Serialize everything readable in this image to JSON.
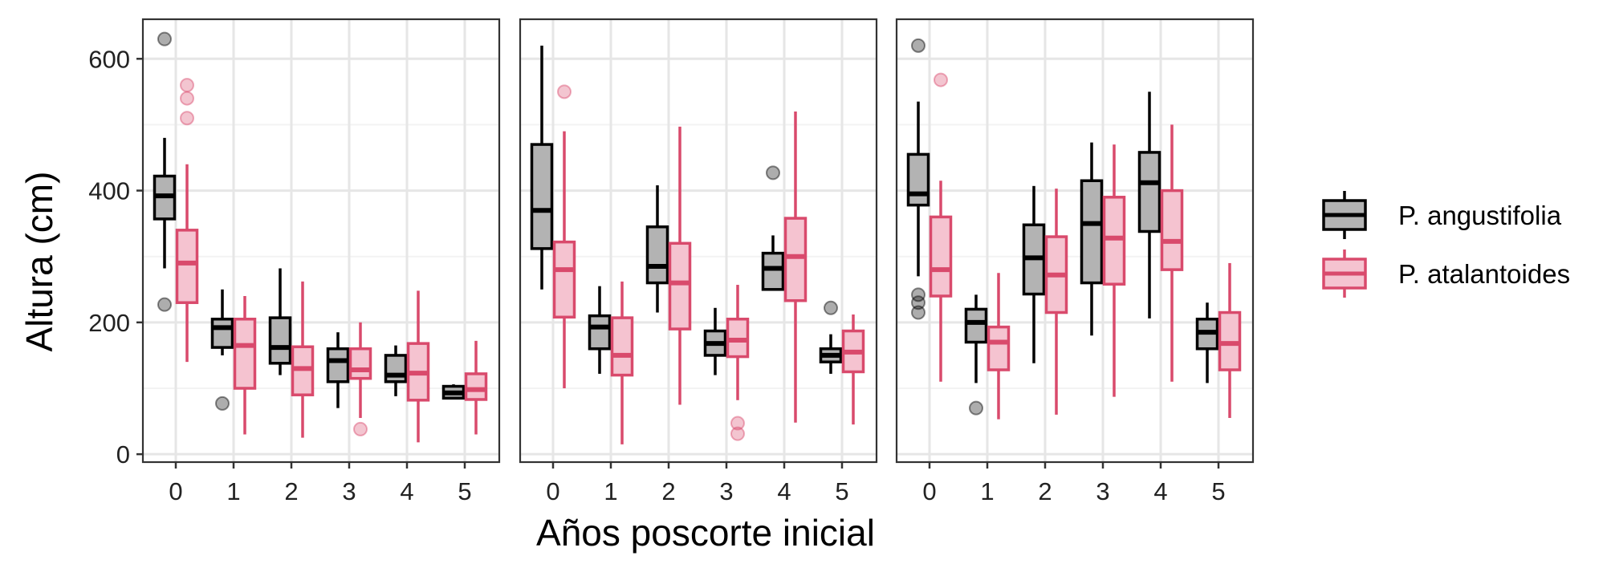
{
  "chart_data": {
    "type": "box",
    "xlabel": "Años poscorte inicial",
    "ylabel": "Altura (cm)",
    "ylim": [
      -12,
      660
    ],
    "yticks": [
      0,
      200,
      400,
      600
    ],
    "categories": [
      "0",
      "1",
      "2",
      "3",
      "4",
      "5"
    ],
    "grid": true,
    "legend_position": "right",
    "series": [
      {
        "name": "P. angustifolia",
        "color": "#000000",
        "fill": "#b3b3b3"
      },
      {
        "name": "P. atalantoides",
        "color": "#d94a6c",
        "fill": "#f5c3d0"
      }
    ],
    "panels": [
      {
        "groups": [
          {
            "cat": "0",
            "s": 0,
            "min": 282,
            "q1": 357,
            "med": 392,
            "q3": 422,
            "max": 480,
            "out": [
              630,
              227
            ]
          },
          {
            "cat": "0",
            "s": 1,
            "min": 140,
            "q1": 230,
            "med": 290,
            "q3": 340,
            "max": 440,
            "out": [
              560,
              540,
              510
            ]
          },
          {
            "cat": "1",
            "s": 0,
            "min": 150,
            "q1": 162,
            "med": 192,
            "q3": 205,
            "max": 250,
            "out": [
              77
            ]
          },
          {
            "cat": "1",
            "s": 1,
            "min": 30,
            "q1": 100,
            "med": 165,
            "q3": 205,
            "max": 240,
            "out": []
          },
          {
            "cat": "2",
            "s": 0,
            "min": 120,
            "q1": 138,
            "med": 162,
            "q3": 207,
            "max": 282,
            "out": []
          },
          {
            "cat": "2",
            "s": 1,
            "min": 25,
            "q1": 90,
            "med": 130,
            "q3": 163,
            "max": 262,
            "out": []
          },
          {
            "cat": "3",
            "s": 0,
            "min": 70,
            "q1": 110,
            "med": 142,
            "q3": 160,
            "max": 185,
            "out": []
          },
          {
            "cat": "3",
            "s": 1,
            "min": 55,
            "q1": 115,
            "med": 128,
            "q3": 160,
            "max": 200,
            "out": [
              38
            ]
          },
          {
            "cat": "4",
            "s": 0,
            "min": 88,
            "q1": 110,
            "med": 120,
            "q3": 150,
            "max": 165,
            "out": []
          },
          {
            "cat": "4",
            "s": 1,
            "min": 18,
            "q1": 82,
            "med": 123,
            "q3": 168,
            "max": 248,
            "out": []
          },
          {
            "cat": "5",
            "s": 0,
            "min": 84,
            "q1": 85,
            "med": 93,
            "q3": 103,
            "max": 106,
            "out": []
          },
          {
            "cat": "5",
            "s": 1,
            "min": 30,
            "q1": 83,
            "med": 98,
            "q3": 122,
            "max": 172,
            "out": []
          }
        ]
      },
      {
        "groups": [
          {
            "cat": "0",
            "s": 0,
            "min": 250,
            "q1": 312,
            "med": 370,
            "q3": 470,
            "max": 620,
            "out": []
          },
          {
            "cat": "0",
            "s": 1,
            "min": 100,
            "q1": 208,
            "med": 280,
            "q3": 322,
            "max": 490,
            "out": [
              550
            ]
          },
          {
            "cat": "1",
            "s": 0,
            "min": 122,
            "q1": 160,
            "med": 193,
            "q3": 210,
            "max": 255,
            "out": []
          },
          {
            "cat": "1",
            "s": 1,
            "min": 15,
            "q1": 120,
            "med": 150,
            "q3": 207,
            "max": 262,
            "out": []
          },
          {
            "cat": "2",
            "s": 0,
            "min": 215,
            "q1": 260,
            "med": 285,
            "q3": 345,
            "max": 408,
            "out": []
          },
          {
            "cat": "2",
            "s": 1,
            "min": 75,
            "q1": 190,
            "med": 260,
            "q3": 320,
            "max": 497,
            "out": []
          },
          {
            "cat": "3",
            "s": 0,
            "min": 120,
            "q1": 150,
            "med": 168,
            "q3": 187,
            "max": 222,
            "out": []
          },
          {
            "cat": "3",
            "s": 1,
            "min": 82,
            "q1": 148,
            "med": 173,
            "q3": 205,
            "max": 257,
            "out": [
              47,
              31
            ]
          },
          {
            "cat": "4",
            "s": 0,
            "min": 250,
            "q1": 250,
            "med": 282,
            "q3": 305,
            "max": 332,
            "out": [
              427
            ]
          },
          {
            "cat": "4",
            "s": 1,
            "min": 48,
            "q1": 233,
            "med": 300,
            "q3": 358,
            "max": 520,
            "out": []
          },
          {
            "cat": "5",
            "s": 0,
            "min": 122,
            "q1": 140,
            "med": 150,
            "q3": 160,
            "max": 182,
            "out": [
              222
            ]
          },
          {
            "cat": "5",
            "s": 1,
            "min": 45,
            "q1": 125,
            "med": 155,
            "q3": 187,
            "max": 212,
            "out": []
          }
        ]
      },
      {
        "groups": [
          {
            "cat": "0",
            "s": 0,
            "min": 270,
            "q1": 378,
            "med": 395,
            "q3": 455,
            "max": 535,
            "out": [
              620,
              242,
              230,
              215
            ]
          },
          {
            "cat": "0",
            "s": 1,
            "min": 110,
            "q1": 240,
            "med": 280,
            "q3": 360,
            "max": 415,
            "out": [
              568
            ]
          },
          {
            "cat": "1",
            "s": 0,
            "min": 108,
            "q1": 170,
            "med": 200,
            "q3": 220,
            "max": 242,
            "out": [
              70
            ]
          },
          {
            "cat": "1",
            "s": 1,
            "min": 53,
            "q1": 128,
            "med": 170,
            "q3": 193,
            "max": 275,
            "out": []
          },
          {
            "cat": "2",
            "s": 0,
            "min": 138,
            "q1": 243,
            "med": 298,
            "q3": 348,
            "max": 407,
            "out": []
          },
          {
            "cat": "2",
            "s": 1,
            "min": 60,
            "q1": 215,
            "med": 272,
            "q3": 330,
            "max": 403,
            "out": []
          },
          {
            "cat": "3",
            "s": 0,
            "min": 180,
            "q1": 260,
            "med": 350,
            "q3": 415,
            "max": 473,
            "out": []
          },
          {
            "cat": "3",
            "s": 1,
            "min": 87,
            "q1": 258,
            "med": 328,
            "q3": 390,
            "max": 470,
            "out": []
          },
          {
            "cat": "4",
            "s": 0,
            "min": 206,
            "q1": 338,
            "med": 412,
            "q3": 458,
            "max": 550,
            "out": []
          },
          {
            "cat": "4",
            "s": 1,
            "min": 110,
            "q1": 280,
            "med": 323,
            "q3": 400,
            "max": 500,
            "out": []
          },
          {
            "cat": "5",
            "s": 0,
            "min": 108,
            "q1": 160,
            "med": 185,
            "q3": 205,
            "max": 230,
            "out": []
          },
          {
            "cat": "5",
            "s": 1,
            "min": 55,
            "q1": 128,
            "med": 168,
            "q3": 215,
            "max": 290,
            "out": []
          }
        ]
      }
    ]
  }
}
